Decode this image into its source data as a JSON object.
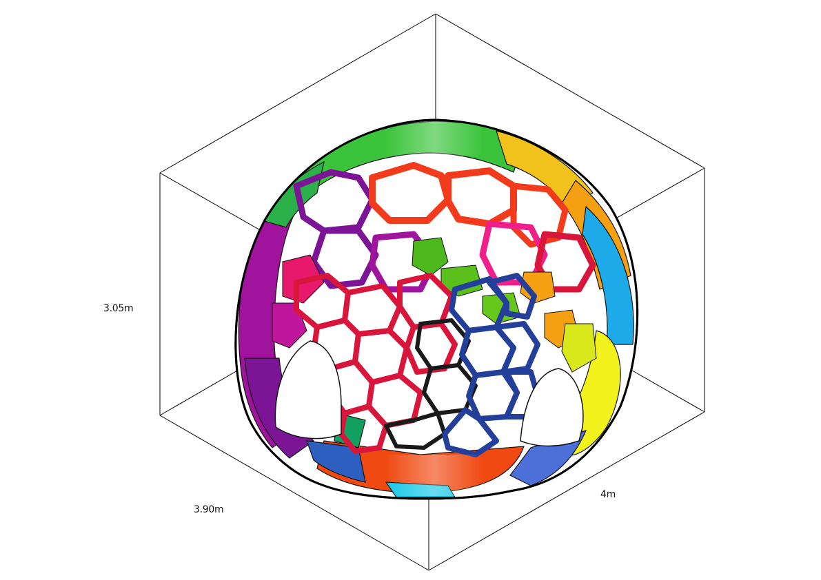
{
  "dimensions": {
    "height": "3.05m",
    "depth": "3.90m",
    "width": "4m"
  },
  "colors": {
    "box_edges": "#000000",
    "cell_outline": "#111111",
    "band_top": "#3bc43b",
    "band_right": "#1ea9e8",
    "band_left": "#a0139c",
    "band_bottom": "#f04a12",
    "lattice_front": "#d8163c",
    "lattice_right": "#233f9a",
    "lattice_top": "#f23a1c",
    "lattice_left": "#7c1496",
    "yellow_region": "#f2f21c",
    "orange_region": "#f5a012",
    "pink_region": "#f01f8a"
  },
  "object": "voronoi-lattice-dome"
}
